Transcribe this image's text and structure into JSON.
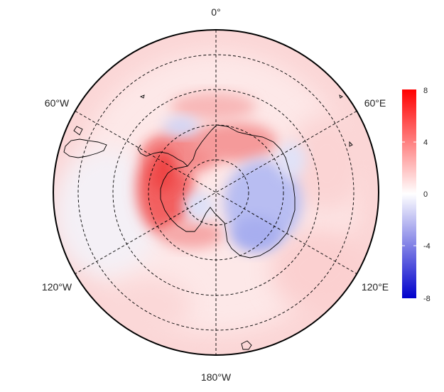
{
  "map": {
    "projection": "south polar stereographic",
    "longitude_labels": {
      "top": "0°",
      "upper_left": "60°W",
      "upper_right": "60°E",
      "lower_left": "120°W",
      "lower_right": "120°E",
      "bottom": "180°W"
    },
    "graticule": "dashed",
    "colors": {
      "neg": "#0000cc",
      "mid": "#ffffff",
      "pos": "#ff0000",
      "coast": "#000000",
      "grid": "#000000"
    }
  },
  "colorbar": {
    "ticks": [
      "8",
      "4",
      "0",
      "-4",
      "-8"
    ],
    "min": -8,
    "max": 8,
    "orientation": "vertical",
    "placement": "right"
  }
}
